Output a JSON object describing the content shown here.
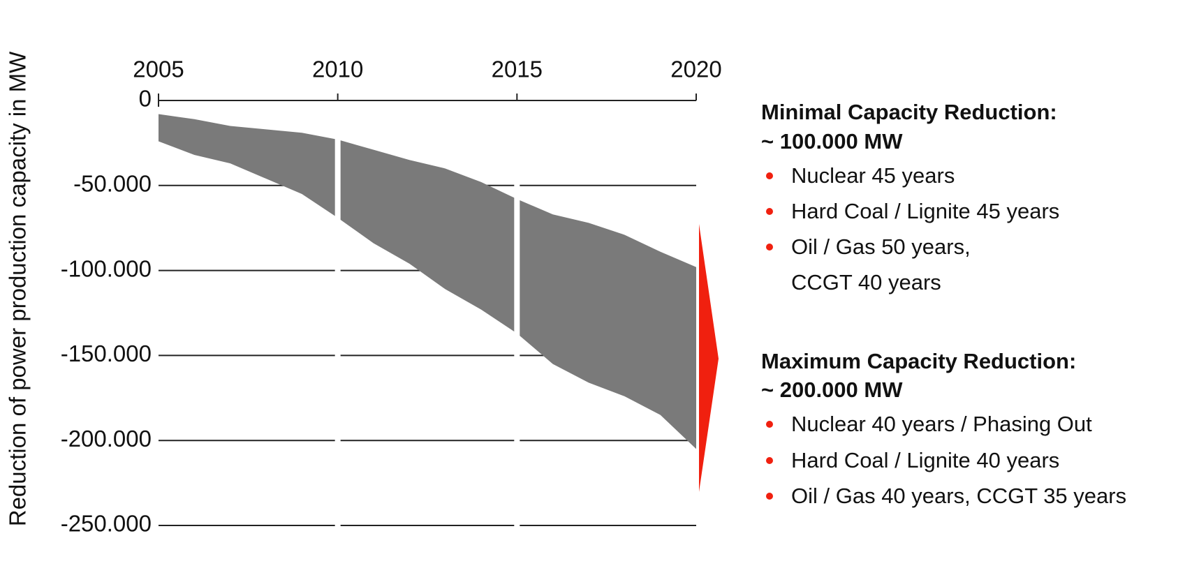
{
  "chart_data": {
    "type": "area_band",
    "y_label": "Reduction of power production capacity in MW",
    "x": [
      2005,
      2006,
      2007,
      2008,
      2009,
      2010,
      2011,
      2012,
      2013,
      2014,
      2015,
      2016,
      2017,
      2018,
      2019,
      2020
    ],
    "series": [
      {
        "color": "#7a7a7a",
        "values": [
          -8000,
          -11000,
          -15000,
          -17000,
          -19000,
          -23000,
          -29000,
          -35000,
          -40000,
          -48000,
          -58000,
          -67000,
          -72000,
          -79000,
          -89000,
          -98000
        ]
      },
      {
        "color": "#7a7a7a",
        "values": [
          -24000,
          -32000,
          -37000,
          -46000,
          -55000,
          -69000,
          -84000,
          -96000,
          -111000,
          -123000,
          -137000,
          -155000,
          -166000,
          -174000,
          -185000,
          -205000
        ]
      }
    ],
    "xlim": [
      2005,
      2020
    ],
    "xticks": [
      2005,
      2010,
      2015,
      2020
    ],
    "ylim": [
      -250000,
      0
    ],
    "yticks": [
      0,
      {
        "value": -50000,
        "label": "-50.000"
      },
      {
        "value": -100000,
        "label": "-100.000"
      },
      {
        "value": -150000,
        "label": "-150.000"
      },
      {
        "value": -200000,
        "label": "-200.000"
      },
      {
        "value": -250000,
        "label": "-250.000"
      }
    ],
    "grid": true,
    "arrow_color": "#f0200f",
    "annotations": [
      {
        "heading": [
          "Minimal Capacity Reduction:",
          "~ 100.000 MW"
        ],
        "items": [
          [
            "Nuclear 45 years"
          ],
          [
            "Hard Coal / Lignite 45 years"
          ],
          [
            "Oil / Gas 50 years,",
            "CCGT 40 years"
          ]
        ]
      },
      {
        "heading": [
          "Maximum Capacity Reduction:",
          "~ 200.000 MW"
        ],
        "items": [
          [
            "Nuclear 40 years / Phasing Out"
          ],
          [
            "Hard Coal / Lignite 40 years"
          ],
          [
            "Oil / Gas 40 years, CCGT 35 years"
          ]
        ]
      }
    ]
  }
}
